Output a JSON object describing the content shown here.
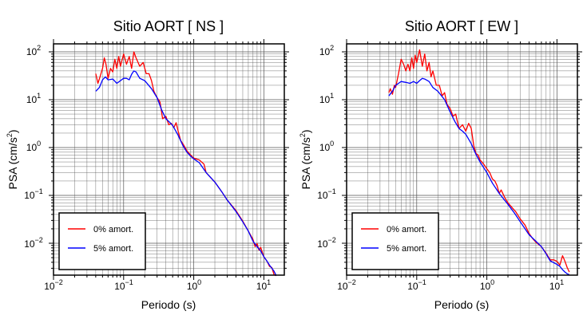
{
  "chart_data": [
    {
      "type": "line",
      "title": "Sitio AORT [ NS ]",
      "xlabel": "Periodo (s)",
      "ylabel": "PSA (cm/s²)",
      "ylabel_base": "PSA (cm/s",
      "ylabel_exp": "2",
      "ylabel_close": ")",
      "xscale": "log",
      "yscale": "log",
      "xlim": [
        0.01,
        20
      ],
      "ylim": [
        0.002,
        130
      ],
      "grid": true,
      "x_ticks": [
        {
          "base": "10",
          "exp": "−2"
        },
        {
          "base": "10",
          "exp": "−1"
        },
        {
          "base": "10",
          "exp": "0"
        },
        {
          "base": "10",
          "exp": "1"
        }
      ],
      "y_ticks": [
        {
          "base": "10",
          "exp": "−2"
        },
        {
          "base": "10",
          "exp": "−1"
        },
        {
          "base": "10",
          "exp": "0"
        },
        {
          "base": "10",
          "exp": "1"
        },
        {
          "base": "10",
          "exp": "2"
        }
      ],
      "legend_position": "bottom-left",
      "series": [
        {
          "name": "0% amort.",
          "color": "#ff0000",
          "points": [
            [
              0.04,
              35
            ],
            [
              0.043,
              22
            ],
            [
              0.046,
              30
            ],
            [
              0.05,
              45
            ],
            [
              0.053,
              75
            ],
            [
              0.056,
              55
            ],
            [
              0.06,
              28
            ],
            [
              0.065,
              45
            ],
            [
              0.07,
              38
            ],
            [
              0.075,
              70
            ],
            [
              0.08,
              45
            ],
            [
              0.085,
              80
            ],
            [
              0.09,
              50
            ],
            [
              0.1,
              90
            ],
            [
              0.11,
              55
            ],
            [
              0.12,
              80
            ],
            [
              0.13,
              45
            ],
            [
              0.14,
              100
            ],
            [
              0.15,
              75
            ],
            [
              0.17,
              50
            ],
            [
              0.19,
              60
            ],
            [
              0.21,
              35
            ],
            [
              0.23,
              35
            ],
            [
              0.25,
              25
            ],
            [
              0.27,
              15
            ],
            [
              0.3,
              11
            ],
            [
              0.33,
              9
            ],
            [
              0.36,
              4
            ],
            [
              0.4,
              4.5
            ],
            [
              0.44,
              3
            ],
            [
              0.48,
              3.2
            ],
            [
              0.52,
              2.6
            ],
            [
              0.56,
              3.3
            ],
            [
              0.6,
              2.2
            ],
            [
              0.65,
              1.4
            ],
            [
              0.7,
              1.2
            ],
            [
              0.8,
              0.85
            ],
            [
              0.9,
              0.7
            ],
            [
              1.0,
              0.6
            ],
            [
              1.2,
              0.55
            ],
            [
              1.4,
              0.45
            ],
            [
              1.5,
              0.3
            ],
            [
              2.0,
              0.19
            ],
            [
              2.5,
              0.12
            ],
            [
              3.0,
              0.08
            ],
            [
              4.0,
              0.048
            ],
            [
              5.0,
              0.029
            ],
            [
              6.0,
              0.018
            ],
            [
              7.0,
              0.012
            ],
            [
              7.5,
              0.0085
            ],
            [
              8.0,
              0.0098
            ],
            [
              8.5,
              0.0072
            ],
            [
              9.0,
              0.0082
            ],
            [
              10.0,
              0.0052
            ],
            [
              11.0,
              0.0043
            ],
            [
              12.0,
              0.0033
            ],
            [
              13.0,
              0.0031
            ],
            [
              14.0,
              0.0022
            ],
            [
              15.0,
              0.0021
            ]
          ]
        },
        {
          "name": "5% amort.",
          "color": "#0000ff",
          "points": [
            [
              0.04,
              15
            ],
            [
              0.045,
              18
            ],
            [
              0.05,
              26
            ],
            [
              0.055,
              30
            ],
            [
              0.06,
              26
            ],
            [
              0.07,
              27
            ],
            [
              0.08,
              22
            ],
            [
              0.09,
              25
            ],
            [
              0.1,
              28
            ],
            [
              0.11,
              28
            ],
            [
              0.12,
              26
            ],
            [
              0.13,
              34
            ],
            [
              0.14,
              40
            ],
            [
              0.15,
              38
            ],
            [
              0.17,
              28
            ],
            [
              0.2,
              25
            ],
            [
              0.25,
              17
            ],
            [
              0.3,
              11
            ],
            [
              0.35,
              6
            ],
            [
              0.4,
              4
            ],
            [
              0.45,
              3.4
            ],
            [
              0.5,
              2.9
            ],
            [
              0.6,
              1.8
            ],
            [
              0.7,
              1.1
            ],
            [
              0.8,
              0.8
            ],
            [
              0.9,
              0.66
            ],
            [
              1.0,
              0.58
            ],
            [
              1.2,
              0.48
            ],
            [
              1.5,
              0.3
            ],
            [
              2.0,
              0.19
            ],
            [
              2.5,
              0.12
            ],
            [
              3.0,
              0.08
            ],
            [
              4.0,
              0.046
            ],
            [
              5.0,
              0.028
            ],
            [
              6.0,
              0.018
            ],
            [
              7.0,
              0.011
            ],
            [
              8.0,
              0.0085
            ],
            [
              9.0,
              0.0069
            ],
            [
              10.0,
              0.0052
            ],
            [
              11.0,
              0.0043
            ],
            [
              12.0,
              0.0035
            ],
            [
              13.0,
              0.003
            ],
            [
              14.0,
              0.0026
            ],
            [
              15.0,
              0.0021
            ]
          ]
        }
      ]
    },
    {
      "type": "line",
      "title": "Sitio AORT [ EW ]",
      "xlabel": "Periodo (s)",
      "ylabel": "PSA (cm/s²)",
      "ylabel_base": "PSA (cm/s",
      "ylabel_exp": "2",
      "ylabel_close": ")",
      "xscale": "log",
      "yscale": "log",
      "xlim": [
        0.01,
        20
      ],
      "ylim": [
        0.002,
        130
      ],
      "grid": true,
      "x_ticks": [
        {
          "base": "10",
          "exp": "−2"
        },
        {
          "base": "10",
          "exp": "−1"
        },
        {
          "base": "10",
          "exp": "0"
        },
        {
          "base": "10",
          "exp": "1"
        }
      ],
      "y_ticks": [
        {
          "base": "10",
          "exp": "−2"
        },
        {
          "base": "10",
          "exp": "−1"
        },
        {
          "base": "10",
          "exp": "0"
        },
        {
          "base": "10",
          "exp": "1"
        },
        {
          "base": "10",
          "exp": "2"
        }
      ],
      "legend_position": "bottom-left",
      "series": [
        {
          "name": "0% amort.",
          "color": "#ff0000",
          "points": [
            [
              0.04,
              14
            ],
            [
              0.042,
              17
            ],
            [
              0.045,
              13
            ],
            [
              0.048,
              20
            ],
            [
              0.05,
              18
            ],
            [
              0.055,
              35
            ],
            [
              0.06,
              70
            ],
            [
              0.065,
              55
            ],
            [
              0.07,
              40
            ],
            [
              0.075,
              55
            ],
            [
              0.08,
              40
            ],
            [
              0.085,
              75
            ],
            [
              0.09,
              45
            ],
            [
              0.095,
              85
            ],
            [
              0.1,
              60
            ],
            [
              0.11,
              110
            ],
            [
              0.12,
              50
            ],
            [
              0.13,
              90
            ],
            [
              0.14,
              40
            ],
            [
              0.15,
              60
            ],
            [
              0.16,
              30
            ],
            [
              0.17,
              40
            ],
            [
              0.19,
              20
            ],
            [
              0.21,
              20
            ],
            [
              0.23,
              12
            ],
            [
              0.25,
              14
            ],
            [
              0.27,
              8
            ],
            [
              0.3,
              6.5
            ],
            [
              0.33,
              4.5
            ],
            [
              0.36,
              5
            ],
            [
              0.4,
              2.5
            ],
            [
              0.45,
              3
            ],
            [
              0.5,
              2.2
            ],
            [
              0.55,
              3.2
            ],
            [
              0.6,
              2.5
            ],
            [
              0.65,
              1.1
            ],
            [
              0.7,
              0.75
            ],
            [
              0.75,
              0.7
            ],
            [
              0.8,
              0.55
            ],
            [
              0.9,
              0.45
            ],
            [
              1.0,
              0.36
            ],
            [
              1.1,
              0.3
            ],
            [
              1.2,
              0.22
            ],
            [
              1.3,
              0.2
            ],
            [
              1.4,
              0.16
            ],
            [
              1.5,
              0.11
            ],
            [
              1.6,
              0.13
            ],
            [
              1.8,
              0.09
            ],
            [
              2.0,
              0.07
            ],
            [
              2.3,
              0.055
            ],
            [
              2.6,
              0.045
            ],
            [
              3.0,
              0.032
            ],
            [
              3.5,
              0.024
            ],
            [
              4.0,
              0.016
            ],
            [
              4.5,
              0.0125
            ],
            [
              5.0,
              0.0105
            ],
            [
              6.0,
              0.0085
            ],
            [
              7.0,
              0.0062
            ],
            [
              8.0,
              0.0045
            ],
            [
              9.0,
              0.0045
            ],
            [
              10.0,
              0.0042
            ],
            [
              11.0,
              0.0035
            ],
            [
              12.0,
              0.0055
            ],
            [
              13.0,
              0.0042
            ],
            [
              14.0,
              0.0031
            ],
            [
              15.0,
              0.0025
            ]
          ]
        },
        {
          "name": "5% amort.",
          "color": "#0000ff",
          "points": [
            [
              0.04,
              12
            ],
            [
              0.045,
              15
            ],
            [
              0.05,
              20
            ],
            [
              0.055,
              22
            ],
            [
              0.06,
              24
            ],
            [
              0.07,
              23
            ],
            [
              0.08,
              22
            ],
            [
              0.09,
              24
            ],
            [
              0.1,
              22
            ],
            [
              0.11,
              25
            ],
            [
              0.12,
              28
            ],
            [
              0.13,
              27
            ],
            [
              0.15,
              24
            ],
            [
              0.17,
              18
            ],
            [
              0.2,
              15
            ],
            [
              0.25,
              10
            ],
            [
              0.3,
              5.5
            ],
            [
              0.35,
              3.5
            ],
            [
              0.4,
              2.5
            ],
            [
              0.45,
              2.2
            ],
            [
              0.5,
              1.9
            ],
            [
              0.6,
              1.2
            ],
            [
              0.7,
              0.72
            ],
            [
              0.8,
              0.5
            ],
            [
              0.9,
              0.38
            ],
            [
              1.0,
              0.3
            ],
            [
              1.2,
              0.18
            ],
            [
              1.5,
              0.11
            ],
            [
              2.0,
              0.065
            ],
            [
              2.5,
              0.042
            ],
            [
              3.0,
              0.028
            ],
            [
              4.0,
              0.015
            ],
            [
              5.0,
              0.011
            ],
            [
              6.0,
              0.0085
            ],
            [
              7.0,
              0.006
            ],
            [
              8.0,
              0.0043
            ],
            [
              10.0,
              0.0036
            ],
            [
              11.0,
              0.0033
            ],
            [
              12.0,
              0.0028
            ],
            [
              13.0,
              0.0025
            ],
            [
              14.0,
              0.0023
            ],
            [
              15.0,
              0.0022
            ]
          ]
        }
      ]
    }
  ]
}
